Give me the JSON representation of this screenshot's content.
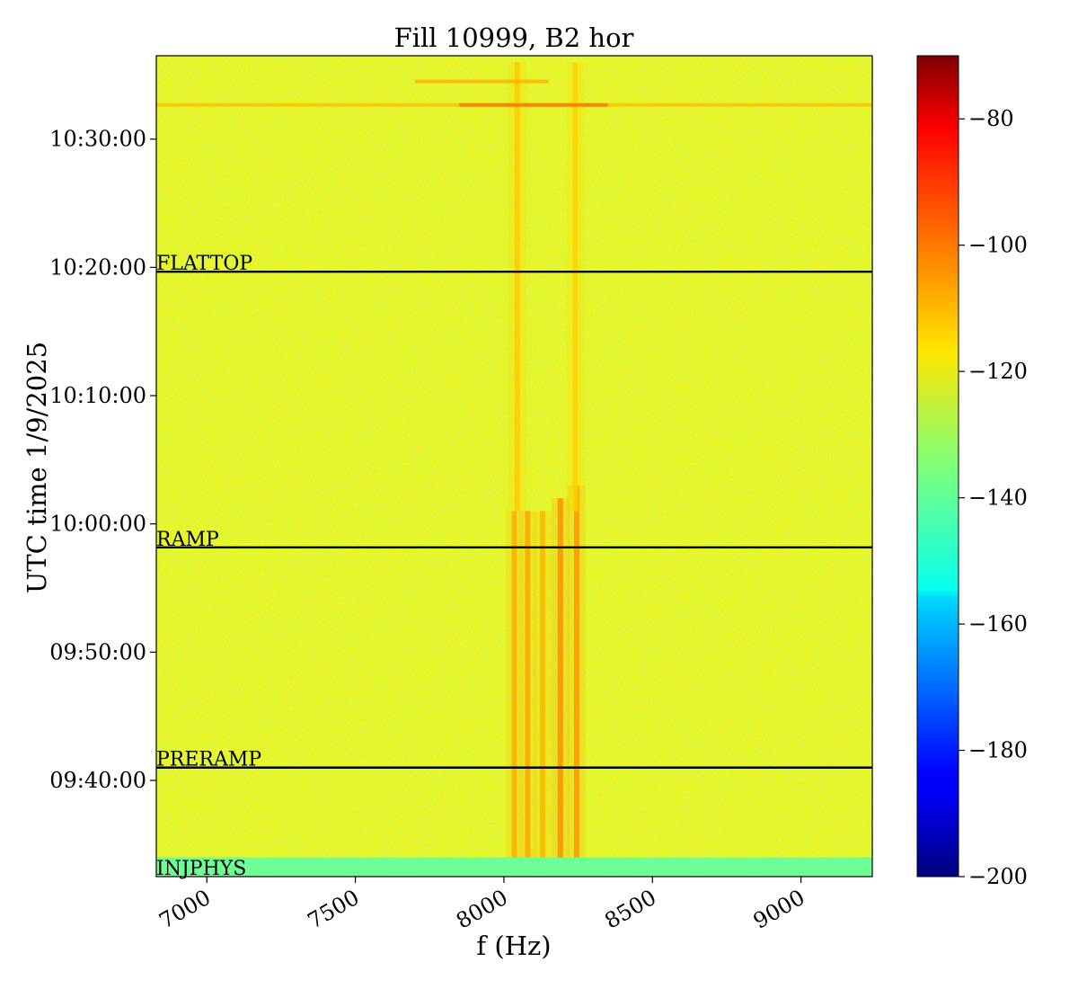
{
  "chart_data": {
    "type": "heatmap",
    "title": "Fill 10999, B2 hor",
    "xlabel": "f (Hz)",
    "ylabel": "UTC time 1/9/2025",
    "xlim": [
      6830,
      9240
    ],
    "ylim": [
      "09:32:30",
      "10:36:30"
    ],
    "x_ticks": [
      7000,
      7500,
      8000,
      8500,
      9000
    ],
    "x_tick_labels": [
      "7000",
      "7500",
      "8000",
      "8500",
      "9000"
    ],
    "y_ticks": [
      "09:40:00",
      "09:50:00",
      "10:00:00",
      "10:10:00",
      "10:20:00",
      "10:30:00"
    ],
    "y_tick_labels": [
      "09:40:00",
      "09:50:00",
      "10:00:00",
      "10:10:00",
      "10:20:00",
      "10:30:00"
    ],
    "colormap": "jet",
    "colorbar": {
      "range": [
        -200,
        -70
      ],
      "ticks": [
        -80,
        -100,
        -120,
        -140,
        -160,
        -180,
        -200
      ],
      "tick_labels": [
        "−80",
        "−100",
        "−120",
        "−140",
        "−160",
        "−180",
        "−200"
      ]
    },
    "background_level": -122,
    "phase_markers": [
      {
        "label": "INJPHYS",
        "time": "09:32:30"
      },
      {
        "label": "PRERAMP",
        "time": "09:41:00"
      },
      {
        "label": "RAMP",
        "time": "09:58:10"
      },
      {
        "label": "FLATTOP",
        "time": "10:19:40"
      }
    ],
    "spectral_lines": [
      {
        "f": 8035,
        "start": "09:34:00",
        "end": "10:01:00",
        "level": -108
      },
      {
        "f": 8080,
        "start": "09:34:00",
        "end": "10:01:00",
        "level": -107
      },
      {
        "f": 8130,
        "start": "09:34:00",
        "end": "10:01:00",
        "level": -109
      },
      {
        "f": 8190,
        "start": "09:34:00",
        "end": "10:02:00",
        "level": -104
      },
      {
        "f": 8245,
        "start": "09:34:00",
        "end": "10:03:00",
        "level": -105
      },
      {
        "f": 8045,
        "start": "10:01:00",
        "end": "10:36:00",
        "level": -112
      },
      {
        "f": 8240,
        "start": "10:01:00",
        "end": "10:36:00",
        "level": -113
      }
    ],
    "events": [
      {
        "time": "10:32:40",
        "f_range": [
          6830,
          9240
        ],
        "level": -110
      },
      {
        "time": "10:32:40",
        "f_range": [
          7850,
          8350
        ],
        "level": -100
      },
      {
        "time": "10:34:30",
        "f_range": [
          7700,
          8150
        ],
        "level": -108
      }
    ]
  }
}
